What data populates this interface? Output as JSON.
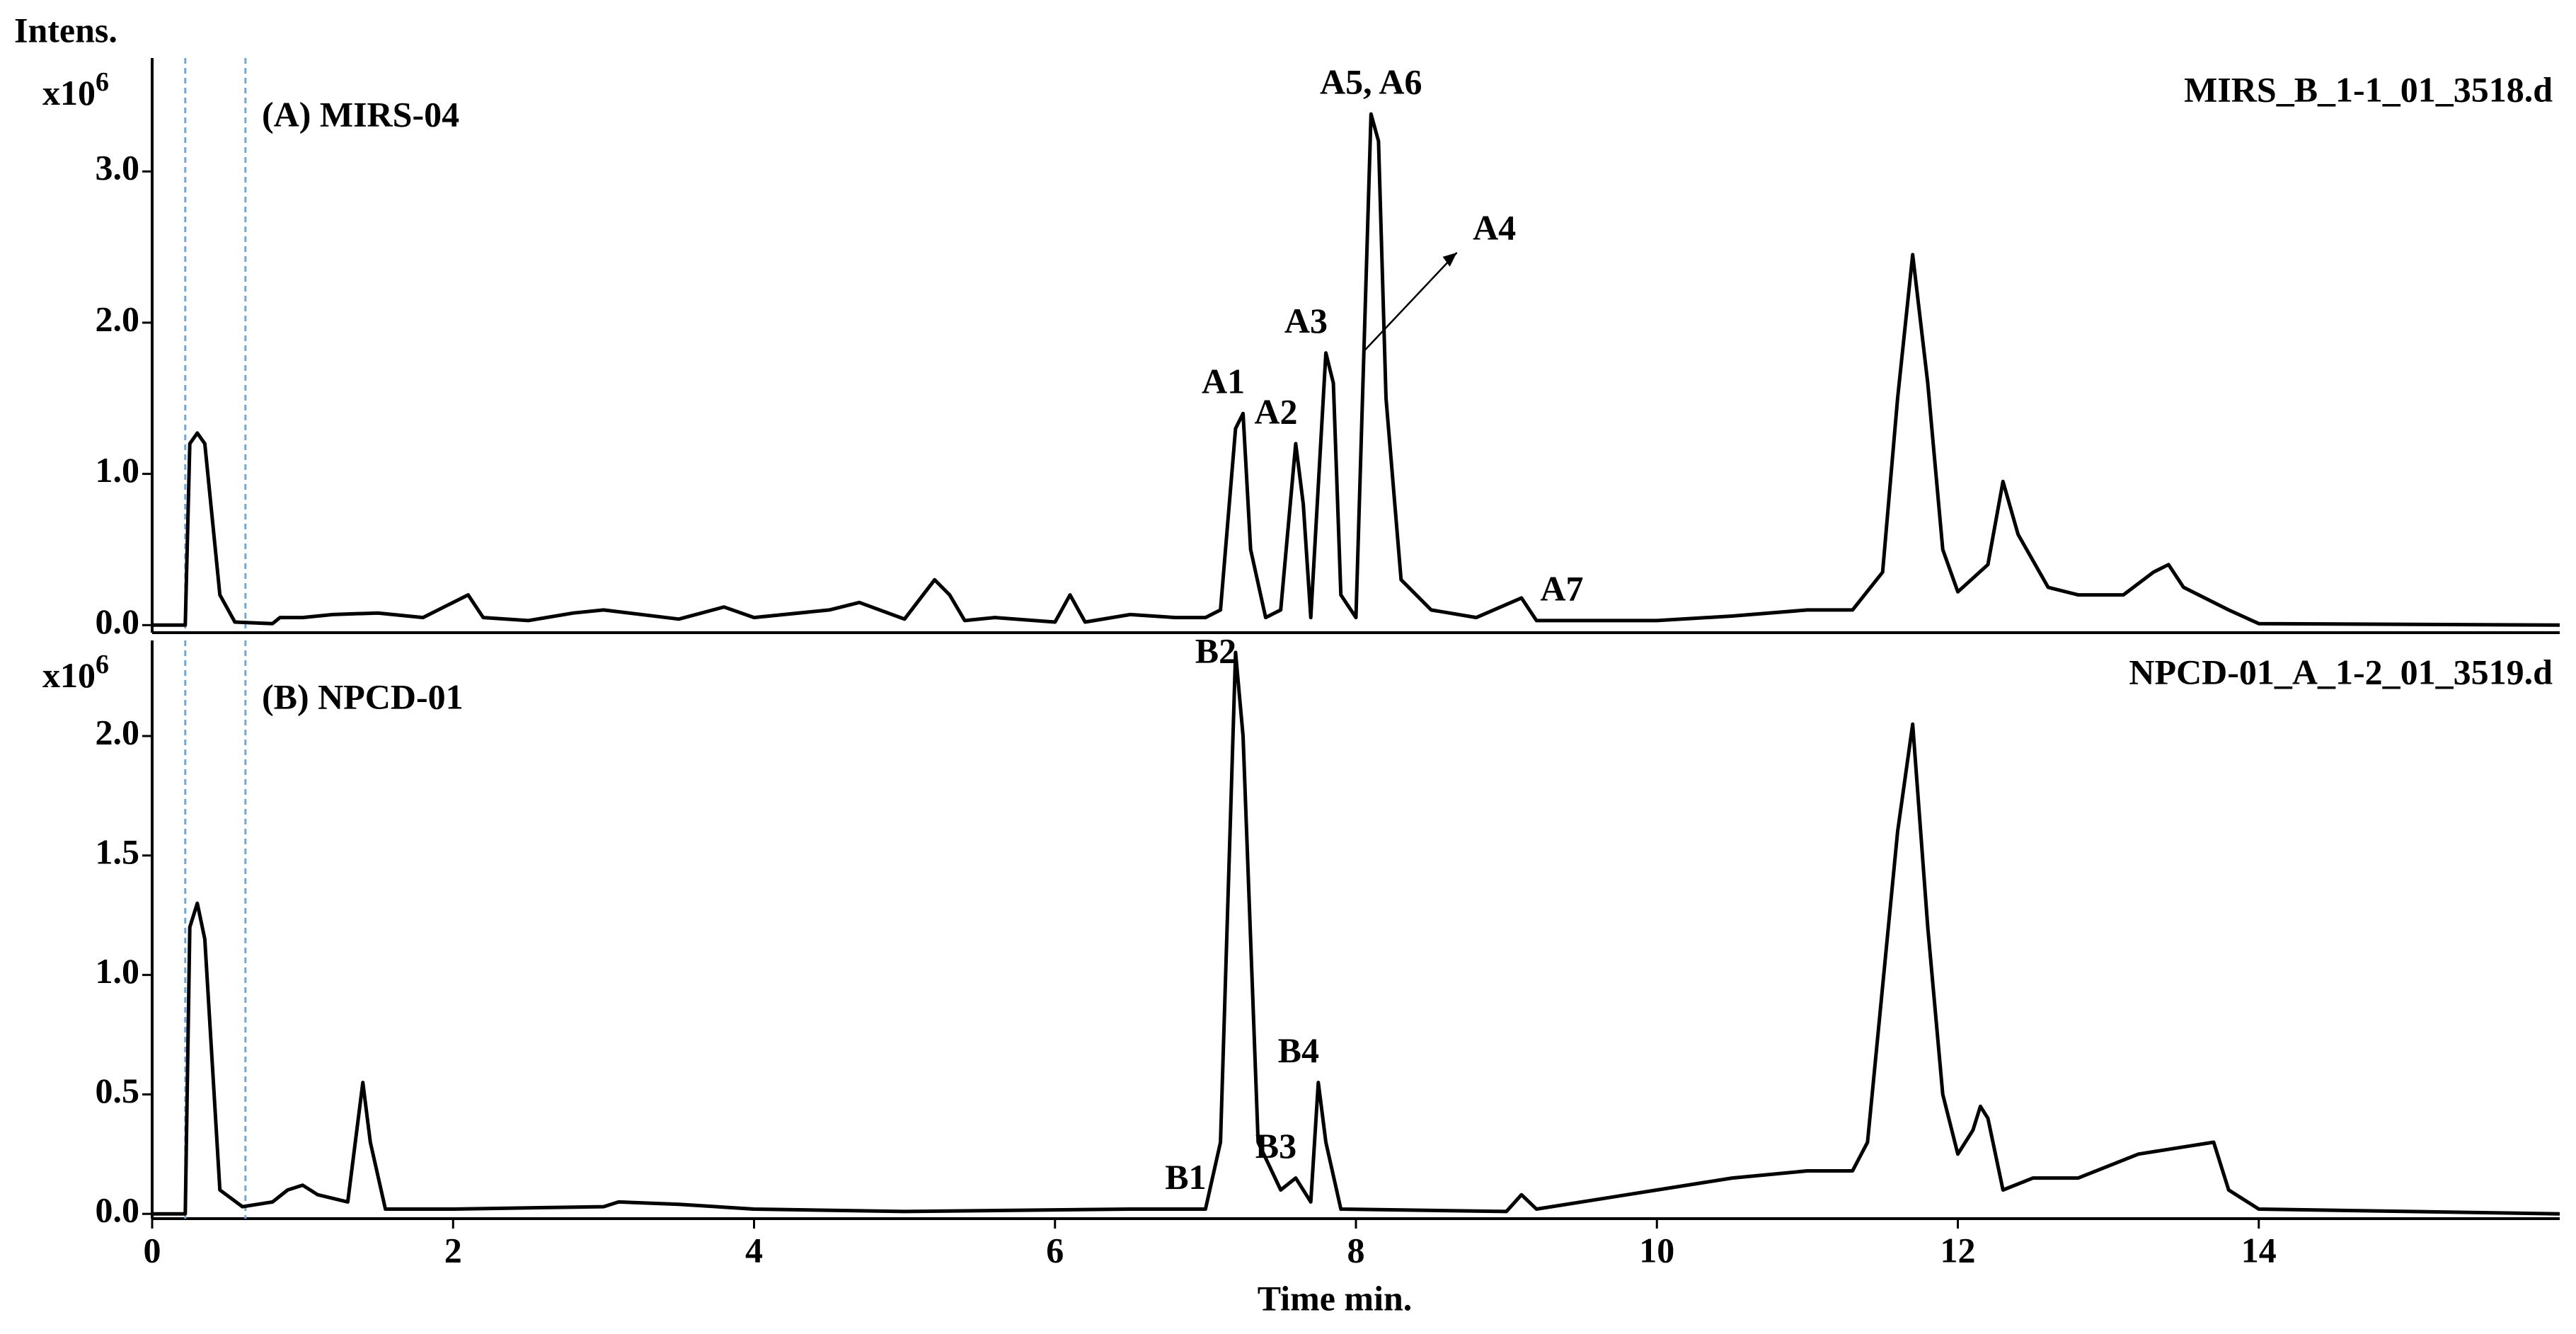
{
  "chart_data": [
    {
      "type": "line",
      "title": "(A) MIRS-04",
      "file_name": "MIRS_B_1-1_01_3518.d",
      "ylabel": "Intens.",
      "y_unit": "x10",
      "y_unit_exp": "6",
      "xlim": [
        0,
        16
      ],
      "ylim": [
        -0.05,
        3.75
      ],
      "yticks": [
        {
          "value": 0,
          "label": "0.0"
        },
        {
          "value": 1,
          "label": "1.0"
        },
        {
          "value": 2,
          "label": "2.0"
        },
        {
          "value": 3,
          "label": "3.0"
        }
      ],
      "color": "#000000",
      "vlines": [
        0.22,
        0.62
      ],
      "vline_color": "#6fa8dc",
      "x": [
        0,
        0.22,
        0.25,
        0.3,
        0.35,
        0.45,
        0.55,
        0.8,
        0.85,
        1.0,
        1.2,
        1.5,
        1.8,
        2.1,
        2.2,
        2.5,
        2.8,
        3.0,
        3.5,
        3.8,
        4.0,
        4.5,
        4.7,
        5.0,
        5.2,
        5.3,
        5.4,
        5.6,
        6.0,
        6.1,
        6.2,
        6.5,
        6.8,
        7.0,
        7.1,
        7.2,
        7.25,
        7.3,
        7.4,
        7.5,
        7.6,
        7.65,
        7.7,
        7.8,
        7.85,
        7.9,
        8.0,
        8.1,
        8.15,
        8.2,
        8.3,
        8.5,
        8.8,
        9.1,
        9.2,
        9.5,
        10.0,
        10.5,
        11.0,
        11.3,
        11.5,
        11.6,
        11.7,
        11.8,
        11.9,
        12.0,
        12.2,
        12.3,
        12.4,
        12.6,
        12.8,
        13.1,
        13.3,
        13.4,
        13.5,
        13.8,
        14.0,
        16
      ],
      "values": [
        0,
        0,
        1.2,
        1.27,
        1.2,
        0.2,
        0.02,
        0.01,
        0.05,
        0.05,
        0.07,
        0.08,
        0.05,
        0.2,
        0.05,
        0.03,
        0.08,
        0.1,
        0.04,
        0.12,
        0.05,
        0.1,
        0.15,
        0.04,
        0.3,
        0.2,
        0.03,
        0.05,
        0.02,
        0.2,
        0.02,
        0.07,
        0.05,
        0.05,
        0.1,
        1.3,
        1.4,
        0.5,
        0.05,
        0.1,
        1.2,
        0.8,
        0.05,
        1.8,
        1.6,
        0.2,
        0.05,
        3.38,
        3.2,
        1.5,
        0.3,
        0.1,
        0.05,
        0.18,
        0.03,
        0.03,
        0.03,
        0.06,
        0.1,
        0.1,
        0.35,
        1.5,
        2.45,
        1.6,
        0.5,
        0.22,
        0.4,
        0.95,
        0.6,
        0.25,
        0.2,
        0.2,
        0.35,
        0.4,
        0.25,
        0.1,
        0.01,
        0
      ],
      "annotations": [
        {
          "text": "A1",
          "x": 7.25
        },
        {
          "text": "A2",
          "x": 7.6
        },
        {
          "text": "A3",
          "x": 7.8
        },
        {
          "text": "A4",
          "x": 8.05,
          "arrow": true
        },
        {
          "text": "A5, A6",
          "x": 8.1
        },
        {
          "text": "A7",
          "x": 9.5
        }
      ]
    },
    {
      "type": "line",
      "title": "(B) NPCD-01",
      "file_name": "NPCD-01_A_1-2_01_3519.d",
      "xlabel": "Time min.",
      "y_unit": "x10",
      "y_unit_exp": "6",
      "xlim": [
        0,
        16
      ],
      "ylim": [
        -0.02,
        2.4
      ],
      "xticks": [
        0,
        2,
        4,
        6,
        8,
        10,
        12,
        14
      ],
      "yticks": [
        {
          "value": 0,
          "label": "0.0"
        },
        {
          "value": 0.5,
          "label": "0.5"
        },
        {
          "value": 1,
          "label": "1.0"
        },
        {
          "value": 1.5,
          "label": "1.5"
        },
        {
          "value": 2,
          "label": "2.0"
        }
      ],
      "color": "#000000",
      "vlines": [
        0.22,
        0.62
      ],
      "vline_color": "#6fa8dc",
      "x": [
        0,
        0.22,
        0.25,
        0.3,
        0.35,
        0.45,
        0.6,
        0.8,
        0.9,
        1.0,
        1.1,
        1.3,
        1.4,
        1.45,
        1.55,
        2,
        3,
        3.1,
        3.5,
        4,
        5,
        6.5,
        7.0,
        7.1,
        7.2,
        7.25,
        7.35,
        7.5,
        7.6,
        7.7,
        7.75,
        7.8,
        7.9,
        9.0,
        9.1,
        9.2,
        10,
        10.5,
        11,
        11.3,
        11.4,
        11.6,
        11.7,
        11.8,
        11.9,
        12.0,
        12.1,
        12.15,
        12.2,
        12.3,
        12.5,
        12.8,
        13.2,
        13.5,
        13.7,
        13.8,
        14,
        16
      ],
      "values": [
        0,
        0,
        1.2,
        1.3,
        1.15,
        0.1,
        0.03,
        0.05,
        0.1,
        0.12,
        0.08,
        0.05,
        0.55,
        0.3,
        0.02,
        0.02,
        0.03,
        0.05,
        0.04,
        0.02,
        0.01,
        0.02,
        0.02,
        0.3,
        2.35,
        2.0,
        0.3,
        0.1,
        0.15,
        0.05,
        0.55,
        0.3,
        0.02,
        0.01,
        0.08,
        0.02,
        0.1,
        0.15,
        0.18,
        0.18,
        0.3,
        1.6,
        2.05,
        1.2,
        0.5,
        0.25,
        0.35,
        0.45,
        0.4,
        0.1,
        0.15,
        0.15,
        0.25,
        0.28,
        0.3,
        0.1,
        0.02,
        0
      ],
      "annotations": [
        {
          "text": "B1",
          "x": 7.0
        },
        {
          "text": "B2",
          "x": 7.2
        },
        {
          "text": "B3",
          "x": 7.6
        },
        {
          "text": "B4",
          "x": 7.75
        }
      ]
    }
  ]
}
